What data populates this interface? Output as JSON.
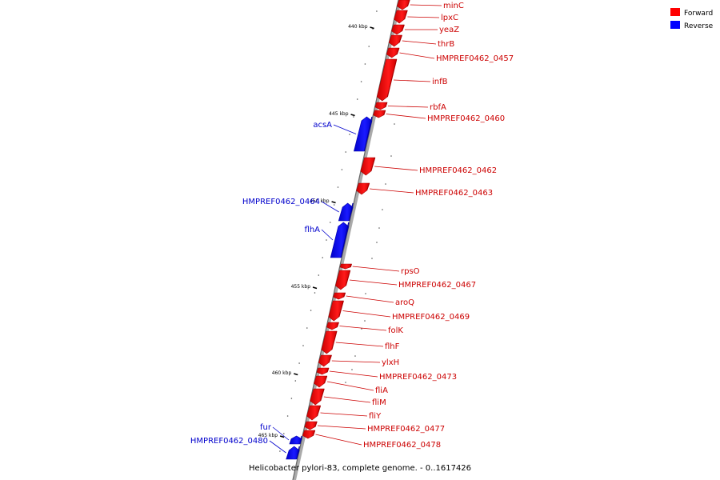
{
  "diagram": {
    "caption": "Helicobacter pylori-83, complete genome. - 0..1617426",
    "legend": [
      {
        "label": "Forward",
        "color": "#ff0000"
      },
      {
        "label": "Reverse",
        "color": "#0000ff"
      }
    ],
    "colors": {
      "forward": "#ff0000",
      "forward_dark": "#a80000",
      "reverse": "#0000ff",
      "reverse_dark": "#0000a8",
      "axis": "#999999",
      "label_forward": "#cc0000",
      "label_reverse": "#0000cc"
    },
    "ticks": [
      {
        "label": "440 kbp",
        "kbp": 440
      },
      {
        "label": "445 kbp",
        "kbp": 445
      },
      {
        "label": "450 kbp",
        "kbp": 450
      },
      {
        "label": "455 kbp",
        "kbp": 455
      },
      {
        "label": "460 kbp",
        "kbp": 460
      },
      {
        "label": "465 kbp",
        "kbp": 465
      }
    ],
    "genes": [
      {
        "name": "minC",
        "strand": "forward"
      },
      {
        "name": "lpxC",
        "strand": "forward"
      },
      {
        "name": "yeaZ",
        "strand": "forward"
      },
      {
        "name": "thrB",
        "strand": "forward"
      },
      {
        "name": "HMPREF0462_0457",
        "strand": "forward"
      },
      {
        "name": "infB",
        "strand": "forward"
      },
      {
        "name": "rbfA",
        "strand": "forward"
      },
      {
        "name": "HMPREF0462_0460",
        "strand": "forward"
      },
      {
        "name": "acsA",
        "strand": "reverse"
      },
      {
        "name": "HMPREF0462_0462",
        "strand": "forward"
      },
      {
        "name": "HMPREF0462_0463",
        "strand": "forward"
      },
      {
        "name": "HMPREF0462_0464",
        "strand": "reverse"
      },
      {
        "name": "flhA",
        "strand": "reverse"
      },
      {
        "name": "rpsO",
        "strand": "forward"
      },
      {
        "name": "HMPREF0462_0467",
        "strand": "forward"
      },
      {
        "name": "aroQ",
        "strand": "forward"
      },
      {
        "name": "HMPREF0462_0469",
        "strand": "forward"
      },
      {
        "name": "folK",
        "strand": "forward"
      },
      {
        "name": "flhF",
        "strand": "forward"
      },
      {
        "name": "ylxH",
        "strand": "forward"
      },
      {
        "name": "HMPREF0462_0473",
        "strand": "forward"
      },
      {
        "name": "fliA",
        "strand": "forward"
      },
      {
        "name": "fliM",
        "strand": "forward"
      },
      {
        "name": "fliY",
        "strand": "forward"
      },
      {
        "name": "HMPREF0462_0477",
        "strand": "forward"
      },
      {
        "name": "HMPREF0462_0478",
        "strand": "forward"
      },
      {
        "name": "fur",
        "strand": "reverse"
      },
      {
        "name": "HMPREF0462_0480",
        "strand": "reverse"
      }
    ]
  }
}
